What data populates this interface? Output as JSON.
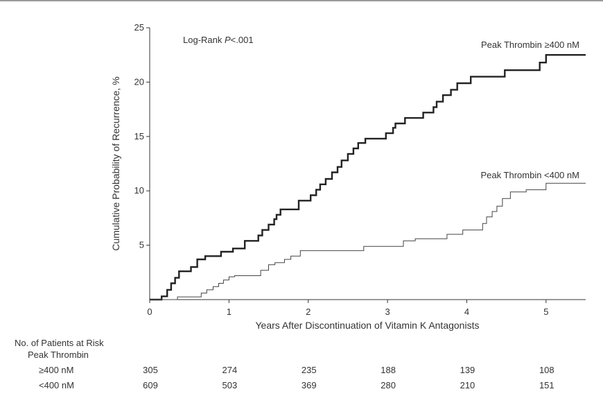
{
  "chart_data": {
    "type": "line",
    "step": true,
    "ylabel": "Cumulative Probability of Recurrence, %",
    "xlabel": "Years After Discontinuation of Vitamin K Antagonists",
    "xlim": [
      0,
      5.5
    ],
    "ylim": [
      0,
      25
    ],
    "x_ticks": [
      "0",
      "1",
      "2",
      "3",
      "4",
      "5"
    ],
    "y_ticks": [
      "5",
      "10",
      "15",
      "20",
      "25"
    ],
    "grid": false,
    "annotation": {
      "prefix": "Log-Rank ",
      "italic": "P",
      "suffix": "<.001"
    },
    "series": [
      {
        "name": "Peak Thrombin ≥400 nM",
        "style": "thick",
        "points": [
          [
            0,
            0
          ],
          [
            0.15,
            0
          ],
          [
            0.15,
            0.3
          ],
          [
            0.22,
            0.3
          ],
          [
            0.22,
            0.9
          ],
          [
            0.27,
            0.9
          ],
          [
            0.27,
            1.5
          ],
          [
            0.32,
            1.5
          ],
          [
            0.32,
            2.0
          ],
          [
            0.37,
            2.0
          ],
          [
            0.37,
            2.6
          ],
          [
            0.52,
            2.6
          ],
          [
            0.52,
            3.0
          ],
          [
            0.6,
            3.0
          ],
          [
            0.6,
            3.7
          ],
          [
            0.7,
            3.7
          ],
          [
            0.7,
            4.0
          ],
          [
            0.9,
            4.0
          ],
          [
            0.9,
            4.4
          ],
          [
            1.05,
            4.4
          ],
          [
            1.05,
            4.7
          ],
          [
            1.2,
            4.7
          ],
          [
            1.2,
            5.4
          ],
          [
            1.37,
            5.4
          ],
          [
            1.37,
            5.9
          ],
          [
            1.42,
            5.9
          ],
          [
            1.42,
            6.4
          ],
          [
            1.5,
            6.4
          ],
          [
            1.5,
            6.9
          ],
          [
            1.57,
            6.9
          ],
          [
            1.57,
            7.4
          ],
          [
            1.6,
            7.4
          ],
          [
            1.6,
            7.8
          ],
          [
            1.65,
            7.8
          ],
          [
            1.65,
            8.3
          ],
          [
            1.88,
            8.3
          ],
          [
            1.88,
            9.1
          ],
          [
            2.03,
            9.1
          ],
          [
            2.03,
            9.6
          ],
          [
            2.1,
            9.6
          ],
          [
            2.1,
            10.1
          ],
          [
            2.15,
            10.1
          ],
          [
            2.15,
            10.6
          ],
          [
            2.22,
            10.6
          ],
          [
            2.22,
            11.1
          ],
          [
            2.3,
            11.1
          ],
          [
            2.3,
            11.7
          ],
          [
            2.37,
            11.7
          ],
          [
            2.37,
            12.2
          ],
          [
            2.42,
            12.2
          ],
          [
            2.42,
            12.8
          ],
          [
            2.5,
            12.8
          ],
          [
            2.5,
            13.4
          ],
          [
            2.57,
            13.4
          ],
          [
            2.57,
            13.9
          ],
          [
            2.63,
            13.9
          ],
          [
            2.63,
            14.4
          ],
          [
            2.72,
            14.4
          ],
          [
            2.72,
            14.8
          ],
          [
            2.98,
            14.8
          ],
          [
            2.98,
            15.3
          ],
          [
            3.07,
            15.3
          ],
          [
            3.07,
            15.8
          ],
          [
            3.1,
            15.8
          ],
          [
            3.1,
            16.2
          ],
          [
            3.22,
            16.2
          ],
          [
            3.22,
            16.7
          ],
          [
            3.45,
            16.7
          ],
          [
            3.45,
            17.2
          ],
          [
            3.58,
            17.2
          ],
          [
            3.58,
            17.7
          ],
          [
            3.62,
            17.7
          ],
          [
            3.62,
            18.2
          ],
          [
            3.7,
            18.2
          ],
          [
            3.7,
            18.8
          ],
          [
            3.8,
            18.8
          ],
          [
            3.8,
            19.3
          ],
          [
            3.88,
            19.3
          ],
          [
            3.88,
            19.9
          ],
          [
            4.05,
            19.9
          ],
          [
            4.05,
            20.5
          ],
          [
            4.48,
            20.5
          ],
          [
            4.48,
            21.1
          ],
          [
            4.92,
            21.1
          ],
          [
            4.92,
            21.8
          ],
          [
            5.0,
            21.8
          ],
          [
            5.0,
            22.5
          ],
          [
            5.5,
            22.5
          ]
        ],
        "label": "Peak Thrombin ≥400 nM"
      },
      {
        "name": "Peak Thrombin <400 nM",
        "style": "thin",
        "points": [
          [
            0,
            0
          ],
          [
            0.35,
            0
          ],
          [
            0.35,
            0.25
          ],
          [
            0.65,
            0.25
          ],
          [
            0.65,
            0.6
          ],
          [
            0.72,
            0.6
          ],
          [
            0.72,
            0.9
          ],
          [
            0.8,
            0.9
          ],
          [
            0.8,
            1.2
          ],
          [
            0.87,
            1.2
          ],
          [
            0.87,
            1.5
          ],
          [
            0.93,
            1.5
          ],
          [
            0.93,
            1.8
          ],
          [
            1.0,
            1.8
          ],
          [
            1.0,
            2.1
          ],
          [
            1.07,
            2.1
          ],
          [
            1.07,
            2.2
          ],
          [
            1.4,
            2.2
          ],
          [
            1.4,
            2.7
          ],
          [
            1.5,
            2.7
          ],
          [
            1.5,
            3.2
          ],
          [
            1.58,
            3.2
          ],
          [
            1.58,
            3.4
          ],
          [
            1.7,
            3.4
          ],
          [
            1.7,
            3.7
          ],
          [
            1.78,
            3.7
          ],
          [
            1.78,
            4.0
          ],
          [
            1.9,
            4.0
          ],
          [
            1.9,
            4.5
          ],
          [
            2.7,
            4.5
          ],
          [
            2.7,
            4.9
          ],
          [
            3.2,
            4.9
          ],
          [
            3.2,
            5.4
          ],
          [
            3.35,
            5.4
          ],
          [
            3.35,
            5.6
          ],
          [
            3.75,
            5.6
          ],
          [
            3.75,
            6.0
          ],
          [
            3.95,
            6.0
          ],
          [
            3.95,
            6.4
          ],
          [
            4.2,
            6.4
          ],
          [
            4.2,
            7.0
          ],
          [
            4.25,
            7.0
          ],
          [
            4.25,
            7.6
          ],
          [
            4.32,
            7.6
          ],
          [
            4.32,
            8.1
          ],
          [
            4.38,
            8.1
          ],
          [
            4.38,
            8.6
          ],
          [
            4.45,
            8.6
          ],
          [
            4.45,
            9.3
          ],
          [
            4.55,
            9.3
          ],
          [
            4.55,
            9.9
          ],
          [
            4.75,
            9.9
          ],
          [
            4.75,
            10.1
          ],
          [
            5.0,
            10.1
          ],
          [
            5.0,
            10.7
          ],
          [
            5.5,
            10.7
          ]
        ],
        "label": "Peak Thrombin <400 nM"
      }
    ]
  },
  "risk_table": {
    "title": "No. of Patients at Risk",
    "subtitle": "Peak Thrombin",
    "rows": [
      {
        "label": "≥400 nM",
        "values": [
          "305",
          "274",
          "235",
          "188",
          "139",
          "108"
        ]
      },
      {
        "label": "<400 nM",
        "values": [
          "609",
          "503",
          "369",
          "280",
          "210",
          "151"
        ]
      }
    ]
  }
}
